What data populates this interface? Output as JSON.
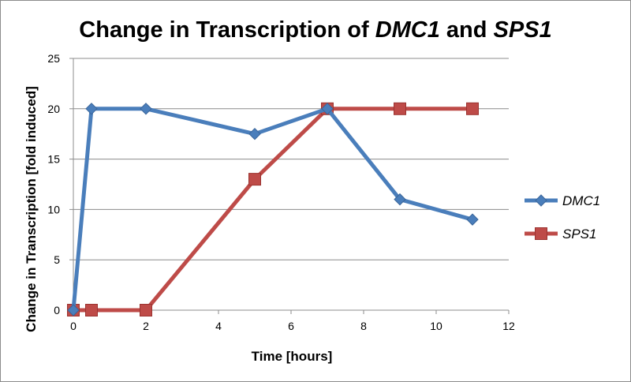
{
  "chart_data": {
    "type": "line",
    "title_prefix": "Change in Transcription of ",
    "title_gene1": "DMC1",
    "title_middle": " and ",
    "title_gene2": "SPS1",
    "xlabel": "Time [hours]",
    "ylabel": "Change in Transcription [fold induced]",
    "xlim": [
      0,
      12
    ],
    "ylim": [
      0,
      25
    ],
    "xticks": [
      0,
      2,
      4,
      6,
      8,
      10,
      12
    ],
    "yticks": [
      0,
      5,
      10,
      15,
      20,
      25
    ],
    "grid": "horizontal",
    "legend_position": "right",
    "series": [
      {
        "name": "DMC1",
        "color": "#4a7ebb",
        "marker": "diamond",
        "x": [
          0,
          0.5,
          2,
          5,
          7,
          9,
          11
        ],
        "y": [
          0,
          20,
          20,
          17.5,
          20,
          11,
          9
        ]
      },
      {
        "name": "SPS1",
        "color": "#be4b48",
        "marker": "square",
        "x": [
          0,
          0.5,
          2,
          5,
          7,
          9,
          11
        ],
        "y": [
          0,
          0,
          0,
          13,
          20,
          20,
          20
        ]
      }
    ]
  }
}
